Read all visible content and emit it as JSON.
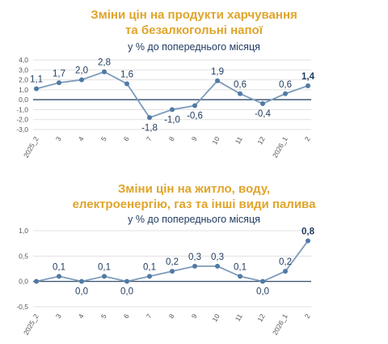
{
  "colors": {
    "title": "#e0a42a",
    "subtitle": "#1f3a5f",
    "line": "#7d9bbb",
    "marker": "#4f7aa6",
    "zero_axis": "#1f3a5f",
    "grid": "#e1e1e1",
    "label": "#1f3a5f"
  },
  "chart_data": [
    {
      "type": "line",
      "title_lines": [
        "Зміни цін на продукти харчування",
        "та безалкогольні напої"
      ],
      "subtitle": "у % до попереднього місяця",
      "categories": [
        "2025_2",
        "3",
        "4",
        "5",
        "6",
        "7",
        "8",
        "9",
        "10",
        "11",
        "12",
        "2026_1",
        "2"
      ],
      "values": [
        1.1,
        1.7,
        2.0,
        2.8,
        1.6,
        -1.8,
        -1.0,
        -0.6,
        1.9,
        0.6,
        -0.4,
        0.6,
        1.4
      ],
      "value_labels": [
        "1,1",
        "1,7",
        "2,0",
        "2,8",
        "1,6",
        "-1,8",
        "-1,0",
        "-0,6",
        "1,9",
        "0,6",
        "-0,4",
        "0,6",
        "1,4"
      ],
      "label_positions": [
        "above",
        "above",
        "above",
        "above",
        "above",
        "below",
        "below",
        "below",
        "above",
        "above",
        "below",
        "above",
        "above"
      ],
      "yticks": [
        4.0,
        3.0,
        2.0,
        1.0,
        0.0,
        -1.0,
        -2.0,
        -3.0
      ],
      "ytick_labels": [
        "4,0",
        "3,0",
        "2,0",
        "1,0",
        "0,0",
        "-1,0",
        "-2,0",
        "-3,0"
      ],
      "ylim": [
        -3.0,
        4.0
      ],
      "grid": true,
      "xlabel": "",
      "ylabel": ""
    },
    {
      "type": "line",
      "title_lines": [
        "Зміни цін на житло, воду,",
        "електроенергію, газ та інші види палива"
      ],
      "subtitle": "у % до попереднього місяця",
      "categories": [
        "2025_2",
        "3",
        "4",
        "5",
        "6",
        "7",
        "8",
        "9",
        "10",
        "11",
        "12",
        "2026_1",
        "2"
      ],
      "values": [
        0.0,
        0.1,
        0.0,
        0.1,
        0.0,
        0.1,
        0.2,
        0.3,
        0.3,
        0.1,
        0.0,
        0.2,
        0.8
      ],
      "value_labels": [
        "",
        "0,1",
        "0,0",
        "0,1",
        "0,0",
        "0,1",
        "0,2",
        "0,3",
        "0,3",
        "0,1",
        "0,0",
        "0,2",
        "0,8"
      ],
      "label_positions": [
        "above",
        "above",
        "below",
        "above",
        "below",
        "above",
        "above",
        "above",
        "above",
        "above",
        "below",
        "above",
        "above"
      ],
      "yticks": [
        1.0,
        0.5,
        0.0,
        -0.5
      ],
      "ytick_labels": [
        "1,0",
        "0,5",
        "0,0",
        "-0,5"
      ],
      "ylim": [
        -0.5,
        1.0
      ],
      "grid": true,
      "xlabel": "",
      "ylabel": ""
    }
  ]
}
